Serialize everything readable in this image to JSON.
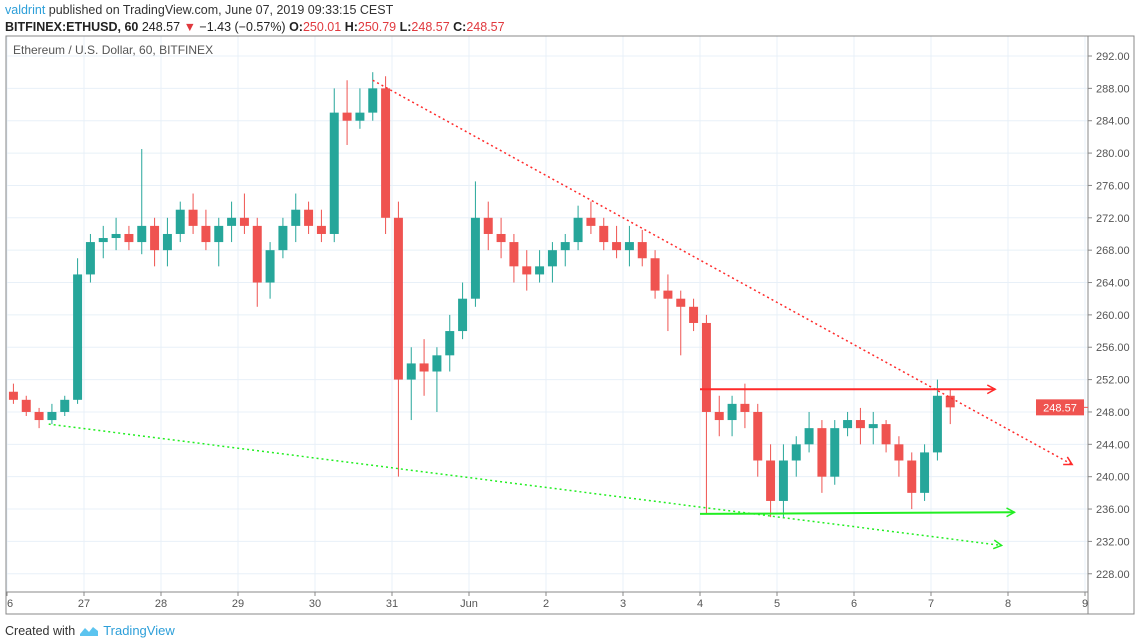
{
  "header": {
    "author": "valdrint",
    "published": "published on TradingView.com, June 07, 2019 09:33:15 CEST",
    "symbol": "BITFINEX:ETHUSD, 60",
    "last": "248.57",
    "change": "−1.43 (−0.57%)",
    "o_label": "O:",
    "o": "250.01",
    "h_label": "H:",
    "h": "250.79",
    "l_label": "L:",
    "l": "248.57",
    "c_label": "C:",
    "c": "248.57"
  },
  "footer": {
    "created_with": "Created with",
    "brand": "TradingView"
  },
  "colors": {
    "up": "#26a69a",
    "down": "#ef5350",
    "red_line": "#ff2a2a",
    "green_line": "#22ee22",
    "grid": "#e8f0f8",
    "accent": "#2d9fd9"
  },
  "chart_data": {
    "type": "candlestick",
    "title": "Ethereum / U.S. Dollar, 60, BITFINEX",
    "ylim": [
      226,
      294
    ],
    "y_ticks": [
      "292.00",
      "288.00",
      "284.00",
      "280.00",
      "276.00",
      "272.00",
      "268.00",
      "264.00",
      "260.00",
      "256.00",
      "252.00",
      "248.00",
      "244.00",
      "240.00",
      "236.00",
      "232.00",
      "228.00"
    ],
    "x_ticks": [
      {
        "label": "6",
        "hours": 0
      },
      {
        "label": "27",
        "hours": 24
      },
      {
        "label": "28",
        "hours": 48
      },
      {
        "label": "29",
        "hours": 72
      },
      {
        "label": "30",
        "hours": 96
      },
      {
        "label": "31",
        "hours": 120
      },
      {
        "label": "Jun",
        "hours": 144
      },
      {
        "label": "2",
        "hours": 168
      },
      {
        "label": "3",
        "hours": 192
      },
      {
        "label": "4",
        "hours": 216
      },
      {
        "label": "5",
        "hours": 240
      },
      {
        "label": "6",
        "hours": 264
      },
      {
        "label": "7",
        "hours": 288
      },
      {
        "label": "8",
        "hours": 312
      },
      {
        "label": "9",
        "hours": 336
      }
    ],
    "last_price_label": "248.57",
    "candle_hours": 4,
    "ohlc": [
      [
        250.5,
        251.5,
        249,
        249.5
      ],
      [
        249.5,
        250,
        247.5,
        248
      ],
      [
        248,
        248.5,
        246,
        247
      ],
      [
        247,
        249,
        246.5,
        248
      ],
      [
        248,
        250,
        247.5,
        249.5
      ],
      [
        249.5,
        267,
        249,
        265
      ],
      [
        265,
        270,
        264,
        269
      ],
      [
        269,
        271,
        267,
        269.5
      ],
      [
        269.5,
        272,
        268,
        270
      ],
      [
        270,
        271,
        268,
        269
      ],
      [
        269,
        280.5,
        267.5,
        271
      ],
      [
        271,
        272,
        266,
        268
      ],
      [
        268,
        272,
        266,
        270
      ],
      [
        270,
        274,
        269,
        273
      ],
      [
        273,
        275,
        270,
        271
      ],
      [
        271,
        273,
        268,
        269
      ],
      [
        269,
        272,
        266,
        271
      ],
      [
        271,
        274,
        269,
        272
      ],
      [
        272,
        275,
        270,
        271
      ],
      [
        271,
        272,
        261,
        264
      ],
      [
        264,
        269,
        262,
        268
      ],
      [
        268,
        272,
        267,
        271
      ],
      [
        271,
        275,
        269,
        273
      ],
      [
        273,
        274,
        270,
        271
      ],
      [
        271,
        273,
        269,
        270
      ],
      [
        270,
        288,
        269,
        285
      ],
      [
        285,
        289,
        281,
        284
      ],
      [
        284,
        288,
        283,
        285
      ],
      [
        285,
        290,
        284,
        288
      ],
      [
        288,
        289.5,
        270,
        272
      ],
      [
        272,
        274,
        240,
        252
      ],
      [
        252,
        256,
        247,
        254
      ],
      [
        254,
        257,
        250,
        253
      ],
      [
        253,
        256,
        248,
        255
      ],
      [
        255,
        260,
        253,
        258
      ],
      [
        258,
        264,
        257,
        262
      ],
      [
        262,
        276.5,
        261,
        272
      ],
      [
        272,
        274,
        268,
        270
      ],
      [
        270,
        272,
        267,
        269
      ],
      [
        269,
        270,
        264,
        266
      ],
      [
        266,
        268,
        263,
        265
      ],
      [
        265,
        268,
        264,
        266
      ],
      [
        266,
        269,
        264,
        268
      ],
      [
        268,
        270,
        266,
        269
      ],
      [
        269,
        273.5,
        268,
        272
      ],
      [
        272,
        274,
        270,
        271
      ],
      [
        271,
        272,
        268,
        269
      ],
      [
        269,
        271,
        267,
        268
      ],
      [
        268,
        271,
        266,
        269
      ],
      [
        269,
        270.5,
        266,
        267
      ],
      [
        267,
        268,
        262,
        263
      ],
      [
        263,
        265,
        258,
        262
      ],
      [
        262,
        263,
        255,
        261
      ],
      [
        261,
        262,
        258,
        259
      ],
      [
        259,
        260,
        235.5,
        248
      ],
      [
        248,
        250,
        245,
        247
      ],
      [
        247,
        250,
        245,
        249
      ],
      [
        249,
        251.5,
        246,
        248
      ],
      [
        248,
        249,
        240,
        242
      ],
      [
        242,
        244,
        235,
        237
      ],
      [
        237,
        244,
        235,
        242
      ],
      [
        242,
        245,
        240,
        244
      ],
      [
        244,
        248,
        243,
        246
      ],
      [
        246,
        247,
        238,
        240
      ],
      [
        240,
        247,
        239,
        246
      ],
      [
        246,
        248,
        245,
        247
      ],
      [
        247,
        248.5,
        244,
        246
      ],
      [
        246,
        248,
        244,
        246.5
      ],
      [
        246.5,
        247,
        243,
        244
      ],
      [
        244,
        245,
        240,
        242
      ],
      [
        242,
        243,
        236,
        238
      ],
      [
        238,
        244,
        237,
        243
      ],
      [
        243,
        252,
        242,
        250
      ],
      [
        250,
        250.79,
        246.5,
        248.57
      ]
    ],
    "trendlines": [
      {
        "name": "descending-resistance",
        "style": "dotted",
        "color": "#ff2a2a",
        "from": [
          114,
          289
        ],
        "to": [
          332,
          241.5
        ],
        "arrow": true
      },
      {
        "name": "descending-support",
        "style": "dotted",
        "color": "#22ee22",
        "from": [
          13,
          246.5
        ],
        "to": [
          310,
          231.5
        ],
        "arrow": true
      },
      {
        "name": "range-top",
        "style": "solid",
        "color": "#ff2a2a",
        "from": [
          216,
          250.8
        ],
        "to": [
          308,
          250.8
        ],
        "arrow": true
      },
      {
        "name": "range-bottom",
        "style": "solid",
        "color": "#22ee22",
        "from": [
          216,
          235.4
        ],
        "to": [
          314,
          235.6
        ],
        "arrow": true
      }
    ]
  }
}
